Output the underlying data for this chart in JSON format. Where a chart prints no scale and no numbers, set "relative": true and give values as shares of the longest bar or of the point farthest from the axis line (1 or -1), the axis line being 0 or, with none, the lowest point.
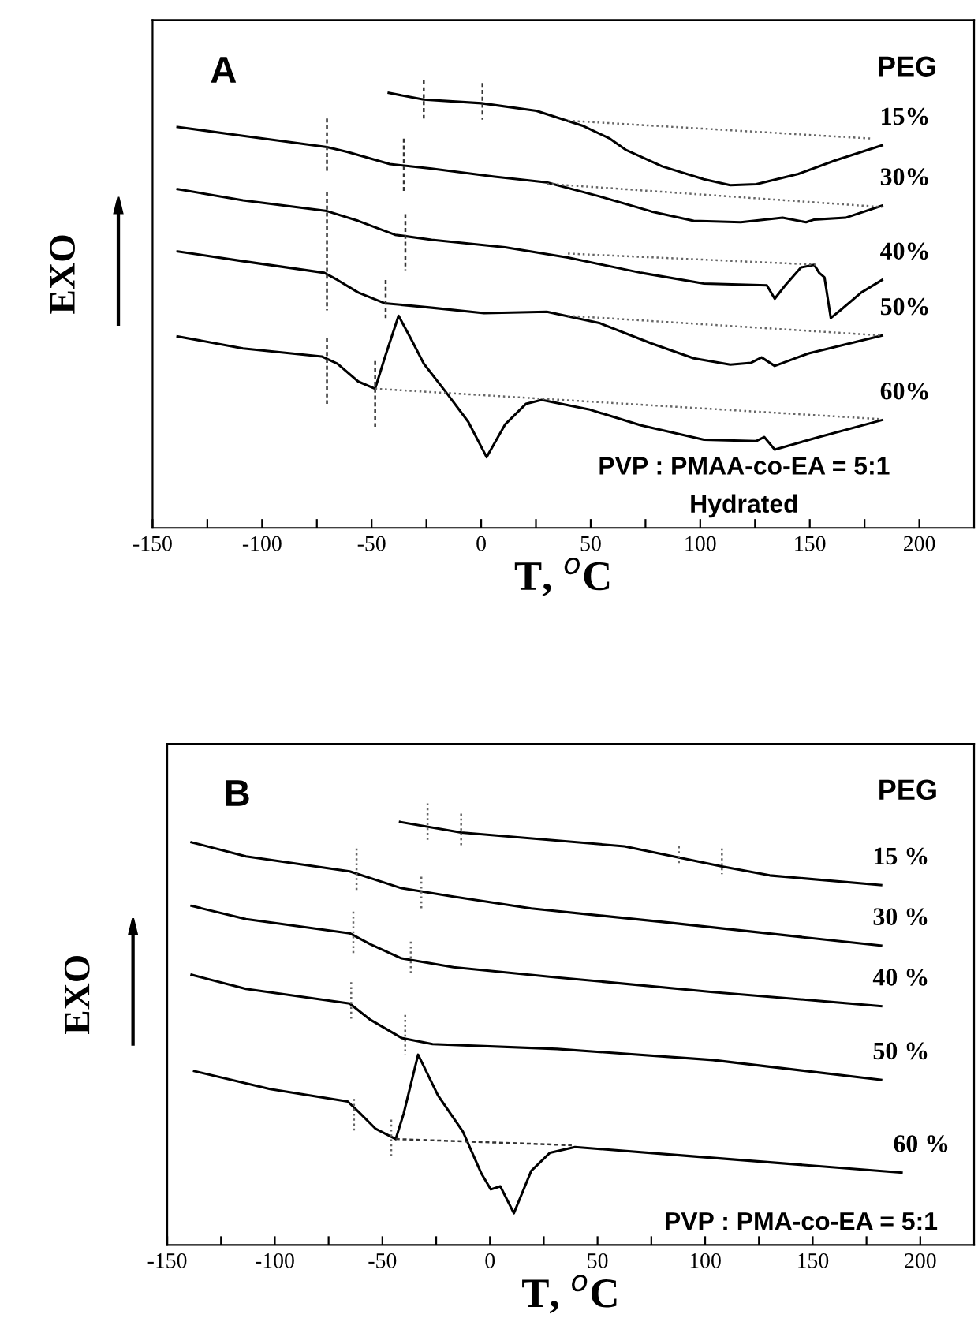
{
  "chart_data": [
    {
      "type": "line",
      "relative": true,
      "title": "A",
      "xlabel": "T, $^{o}$C",
      "ylabel": "EXO",
      "tick_labels": "x",
      "annotations": [
        "PEG",
        "PVP : PMAA-co-EA = 5:1",
        "Hydrated"
      ],
      "xlim": [
        -150,
        225
      ],
      "xticks": [
        -150,
        {
          "value": -125,
          "label": null
        },
        -100,
        {
          "value": -75,
          "label": null
        },
        -50,
        {
          "value": -25,
          "label": null
        },
        0,
        {
          "value": 25,
          "label": null
        },
        50,
        {
          "value": 75,
          "label": null
        },
        100,
        {
          "value": 125,
          "label": null
        },
        150,
        {
          "value": 175,
          "label": null
        },
        200
      ],
      "series": [
        {
          "name": "15%",
          "color": "#000000",
          "x": [
            -42.2,
            -26.2,
            0.1,
            25.2,
            46.7,
            58.7,
            65.9,
            82.6,
            101.7,
            113.7,
            125.6,
            144.8,
            161.5,
            183
          ],
          "values": [
            0.972,
            0.957,
            0.949,
            0.932,
            0.898,
            0.87,
            0.845,
            0.808,
            0.779,
            0.766,
            0.768,
            0.791,
            0.821,
            0.855
          ]
        },
        {
          "name": "30%",
          "color": "#000000",
          "x": [
            -138.6,
            -108.7,
            -70.4,
            -60.9,
            -41.7,
            -22.6,
            6.1,
            30,
            53.9,
            77.8,
            97,
            118.5,
            137.6,
            148.3,
            152,
            166.3,
            183
          ],
          "values": [
            0.896,
            0.876,
            0.851,
            0.84,
            0.813,
            0.803,
            0.785,
            0.772,
            0.741,
            0.707,
            0.686,
            0.683,
            0.693,
            0.683,
            0.689,
            0.693,
            0.72
          ]
        },
        {
          "name": "40%",
          "color": "#000000",
          "x": [
            -138.6,
            -108.7,
            -70.4,
            -56.1,
            -39.3,
            -22.6,
            10.9,
            39.6,
            73,
            101.7,
            130.4,
            134,
            138.8,
            146,
            152,
            154.3,
            156.7,
            159.6,
            163.9,
            173.5,
            183
          ],
          "values": [
            0.757,
            0.732,
            0.708,
            0.686,
            0.655,
            0.644,
            0.627,
            0.604,
            0.57,
            0.546,
            0.542,
            0.512,
            0.542,
            0.582,
            0.588,
            0.57,
            0.56,
            0.469,
            0.486,
            0.526,
            0.554
          ]
        },
        {
          "name": "50%",
          "color": "#000000",
          "x": [
            -138.6,
            -108.7,
            -71.6,
            -65.6,
            -56.1,
            -44.1,
            -22.6,
            1.3,
            30,
            53.9,
            77.8,
            97,
            113.7,
            123.2,
            128,
            134,
            149.5,
            183
          ],
          "values": [
            0.618,
            0.596,
            0.57,
            0.554,
            0.526,
            0.502,
            0.492,
            0.48,
            0.483,
            0.458,
            0.412,
            0.379,
            0.365,
            0.369,
            0.381,
            0.362,
            0.39,
            0.43
          ]
        },
        {
          "name": "60%",
          "color": "#000000",
          "x": [
            -138.6,
            -108.7,
            -72.8,
            -65.6,
            -56.1,
            -48.4,
            -44.1,
            -37.7,
            -32.2,
            -26.2,
            -15.4,
            -5.9,
            2.5,
            10.9,
            20.4,
            27.6,
            49.1,
            73,
            101.7,
            125.6,
            129.2,
            134,
            154.3,
            183
          ],
          "values": [
            0.428,
            0.401,
            0.383,
            0.367,
            0.327,
            0.311,
            0.379,
            0.474,
            0.424,
            0.367,
            0.299,
            0.237,
            0.158,
            0.231,
            0.277,
            0.286,
            0.265,
            0.229,
            0.197,
            0.194,
            0.203,
            0.175,
            0.203,
            0.241
          ]
        },
        {
          "color": "#333333",
          "line_style": "dashed",
          "x": [
            -26.2,
            -26.2
          ],
          "values": [
            1.0,
            0.915
          ]
        },
        {
          "color": "#333333",
          "line_style": "dashed",
          "x": [
            0.6,
            0.6
          ],
          "values": [
            0.994,
            0.912
          ]
        },
        {
          "color": "#333333",
          "line_style": "dashed",
          "x": [
            -70.4,
            -70.4
          ],
          "values": [
            0.915,
            0.797
          ]
        },
        {
          "color": "#333333",
          "line_style": "dashed",
          "x": [
            -35.3,
            -35.3
          ],
          "values": [
            0.87,
            0.751
          ]
        },
        {
          "color": "#333333",
          "line_style": "dashed",
          "x": [
            -70.4,
            -70.4
          ],
          "values": [
            0.751,
            0.486
          ]
        },
        {
          "color": "#333333",
          "line_style": "dashed",
          "x": [
            -34.6,
            -34.6
          ],
          "values": [
            0.701,
            0.576
          ]
        },
        {
          "color": "#333333",
          "line_style": "dashed",
          "x": [
            -43.6,
            -43.6
          ],
          "values": [
            0.554,
            0.469
          ]
        },
        {
          "color": "#333333",
          "line_style": "dashed",
          "x": [
            -70.4,
            -70.4
          ],
          "values": [
            0.424,
            0.277
          ]
        },
        {
          "color": "#333333",
          "line_style": "dashed",
          "x": [
            -48.4,
            -48.4
          ],
          "values": [
            0.373,
            0.226
          ]
        },
        {
          "color": "#666666",
          "line_style": "dotted",
          "x": [
            39.6,
            178
          ],
          "values": [
            0.91,
            0.87
          ]
        },
        {
          "color": "#666666",
          "line_style": "dotted",
          "x": [
            30,
            183
          ],
          "values": [
            0.769,
            0.717
          ]
        },
        {
          "color": "#666666",
          "line_style": "dotted",
          "x": [
            39.6,
            154
          ],
          "values": [
            0.613,
            0.588
          ]
        },
        {
          "color": "#666666",
          "line_style": "dotted",
          "x": [
            39.6,
            183
          ],
          "values": [
            0.474,
            0.43
          ]
        },
        {
          "color": "#666666",
          "line_style": "dotted",
          "x": [
            -48.4,
            183
          ],
          "values": [
            0.311,
            0.243
          ]
        }
      ]
    },
    {
      "type": "line",
      "relative": true,
      "title": "B",
      "xlabel": "T, $^{o}$C",
      "ylabel": "EXO",
      "tick_labels": "x",
      "annotations": [
        "PEG",
        "PVP : PMA-co-EA = 5:1"
      ],
      "xlim": [
        -150,
        225
      ],
      "xticks": [
        -150,
        {
          "value": -125,
          "label": null
        },
        -100,
        {
          "value": -75,
          "label": null
        },
        -50,
        {
          "value": -25,
          "label": null
        },
        0,
        {
          "value": 25,
          "label": null
        },
        50,
        {
          "value": 75,
          "label": null
        },
        100,
        {
          "value": 125,
          "label": null
        },
        150,
        {
          "value": 175,
          "label": null
        },
        200
      ],
      "series": [
        {
          "name": "15 %",
          "color": "#000000",
          "x": [
            -41.8,
            -13.4,
            62.5,
            108.3,
            130,
            181.8
          ],
          "values": [
            0.958,
            0.934,
            0.903,
            0.857,
            0.837,
            0.815
          ]
        },
        {
          "name": "30 %",
          "color": "#000000",
          "x": [
            -138.7,
            -113.4,
            -65.2,
            -41.1,
            -17,
            19.2,
            79.4,
            181.8
          ],
          "values": [
            0.912,
            0.88,
            0.846,
            0.808,
            0.789,
            0.762,
            0.732,
            0.678
          ]
        },
        {
          "name": "40 %",
          "color": "#000000",
          "x": [
            -138.7,
            -113.4,
            -65.2,
            -55.6,
            -41.1,
            -17,
            31.2,
            103.5,
            181.8
          ],
          "values": [
            0.768,
            0.738,
            0.706,
            0.681,
            0.649,
            0.629,
            0.606,
            0.573,
            0.541
          ]
        },
        {
          "name": "50 %",
          "color": "#000000",
          "x": [
            -138.7,
            -113.4,
            -65.2,
            -55.6,
            -41.1,
            -26.7,
            31.2,
            103.5,
            181.8
          ],
          "values": [
            0.612,
            0.58,
            0.547,
            0.51,
            0.469,
            0.455,
            0.444,
            0.419,
            0.374
          ]
        },
        {
          "name": "60 %",
          "color": "#000000",
          "x": [
            -137.5,
            -102.2,
            -66.1,
            -60.3,
            -53.1,
            -43.8,
            -40.1,
            -33.4,
            -24.2,
            -12.6,
            -3.9,
            0.4,
            4.8,
            11.1,
            19.2,
            27.9,
            39.5,
            91.5,
            191.3
          ],
          "values": [
            0.394,
            0.353,
            0.325,
            0.298,
            0.263,
            0.24,
            0.298,
            0.431,
            0.339,
            0.257,
            0.161,
            0.126,
            0.133,
            0.072,
            0.168,
            0.209,
            0.222,
            0.202,
            0.164
          ]
        },
        {
          "color": "#666666",
          "line_style": "dotted",
          "x": [
            -29,
            -29
          ],
          "values": [
            1.0,
            0.915
          ]
        },
        {
          "color": "#666666",
          "line_style": "dotted",
          "x": [
            -13.4,
            -13.4
          ],
          "values": [
            0.977,
            0.903
          ]
        },
        {
          "color": "#666666",
          "line_style": "dotted",
          "x": [
            87.8,
            87.8
          ],
          "values": [
            0.903,
            0.863
          ]
        },
        {
          "color": "#666666",
          "line_style": "dotted",
          "x": [
            107.8,
            107.8
          ],
          "values": [
            0.898,
            0.84
          ]
        },
        {
          "color": "#666666",
          "line_style": "dotted",
          "x": [
            -62,
            -62
          ],
          "values": [
            0.898,
            0.801
          ]
        },
        {
          "color": "#666666",
          "line_style": "dotted",
          "x": [
            -31.9,
            -31.9
          ],
          "values": [
            0.834,
            0.761
          ]
        },
        {
          "color": "#666666",
          "line_style": "dotted",
          "x": [
            -63.5,
            -63.5
          ],
          "values": [
            0.755,
            0.658
          ]
        },
        {
          "color": "#666666",
          "line_style": "dotted",
          "x": [
            -36.8,
            -36.8
          ],
          "values": [
            0.687,
            0.612
          ]
        },
        {
          "color": "#666666",
          "line_style": "dotted",
          "x": [
            -64.5,
            -64.5
          ],
          "values": [
            0.595,
            0.51
          ]
        },
        {
          "color": "#666666",
          "line_style": "dotted",
          "x": [
            -39.4,
            -39.4
          ],
          "values": [
            0.521,
            0.43
          ]
        },
        {
          "color": "#666666",
          "line_style": "dotted",
          "x": [
            -63.2,
            -63.2
          ],
          "values": [
            0.331,
            0.257
          ]
        },
        {
          "color": "#666666",
          "line_style": "dotted",
          "x": [
            -45.9,
            -45.9
          ],
          "values": [
            0.284,
            0.195
          ]
        },
        {
          "color": "#333333",
          "line_style": "dashed",
          "x": [
            -43.8,
            38
          ],
          "values": [
            0.24,
            0.226
          ]
        }
      ]
    }
  ]
}
